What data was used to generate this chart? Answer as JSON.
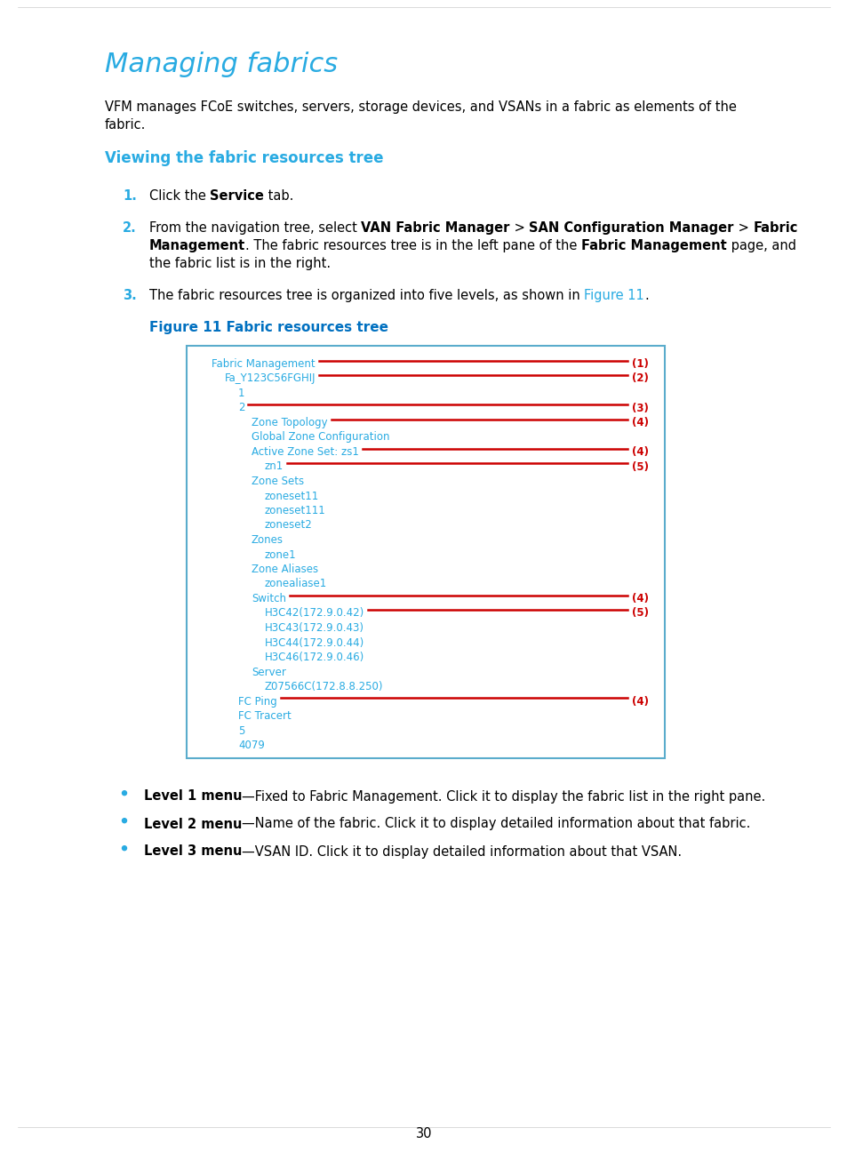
{
  "title": "Managing fabrics",
  "title_color": "#29ABE2",
  "bg_color": "#ffffff",
  "body_color": "#000000",
  "cyan_color": "#29ABE2",
  "red_color": "#CC0000",
  "blue_color": "#0070C0",
  "page_number": "30",
  "para1_line1": "VFM manages FCoE switches, servers, storage devices, and VSANs in a fabric as elements of the",
  "para1_line2": "fabric.",
  "section_heading": "Viewing the fabric resources tree",
  "step2_line3": "the fabric list is in the right.",
  "step3_pre": "The fabric resources tree is organized into five levels, as shown in ",
  "step3_link": "Figure 11",
  "step3_post": ".",
  "fig_caption": "Figure 11 Fabric resources tree",
  "tree_items": [
    {
      "text": "Fabric Management",
      "depth": 0,
      "label": "(1)"
    },
    {
      "text": "Fa_Y123C56FGHIJ",
      "depth": 1,
      "label": "(2)"
    },
    {
      "text": "1",
      "depth": 2,
      "label": ""
    },
    {
      "text": "2",
      "depth": 2,
      "label": "(3)"
    },
    {
      "text": "Zone Topology",
      "depth": 3,
      "label": "(4)"
    },
    {
      "text": "Global Zone Configuration",
      "depth": 3,
      "label": ""
    },
    {
      "text": "Active Zone Set: zs1",
      "depth": 3,
      "label": "(4)"
    },
    {
      "text": "zn1",
      "depth": 4,
      "label": "(5)"
    },
    {
      "text": "Zone Sets",
      "depth": 3,
      "label": ""
    },
    {
      "text": "zoneset11",
      "depth": 4,
      "label": ""
    },
    {
      "text": "zoneset111",
      "depth": 4,
      "label": ""
    },
    {
      "text": "zoneset2",
      "depth": 4,
      "label": ""
    },
    {
      "text": "Zones",
      "depth": 3,
      "label": ""
    },
    {
      "text": "zone1",
      "depth": 4,
      "label": ""
    },
    {
      "text": "Zone Aliases",
      "depth": 3,
      "label": ""
    },
    {
      "text": "zonealiase1",
      "depth": 4,
      "label": ""
    },
    {
      "text": "Switch",
      "depth": 3,
      "label": "(4)"
    },
    {
      "text": "H3C42(172.9.0.42)",
      "depth": 4,
      "label": "(5)"
    },
    {
      "text": "H3C43(172.9.0.43)",
      "depth": 4,
      "label": ""
    },
    {
      "text": "H3C44(172.9.0.44)",
      "depth": 4,
      "label": ""
    },
    {
      "text": "H3C46(172.9.0.46)",
      "depth": 4,
      "label": ""
    },
    {
      "text": "Server",
      "depth": 3,
      "label": ""
    },
    {
      "text": "Z07566C(172.8.8.250)",
      "depth": 4,
      "label": ""
    },
    {
      "text": "FC Ping",
      "depth": 2,
      "label": "(4)"
    },
    {
      "text": "FC Tracert",
      "depth": 2,
      "label": ""
    },
    {
      "text": "5",
      "depth": 2,
      "label": ""
    },
    {
      "text": "4079",
      "depth": 2,
      "label": ""
    }
  ],
  "bullet_items": [
    {
      "label": "Level 1 menu",
      "rest": "—Fixed to Fabric Management. Click it to display the fabric list in the right pane."
    },
    {
      "label": "Level 2 menu",
      "rest": "—Name of the fabric. Click it to display detailed information about that fabric."
    },
    {
      "label": "Level 3 menu",
      "rest": "—VSAN ID. Click it to display detailed information about that VSAN."
    }
  ]
}
